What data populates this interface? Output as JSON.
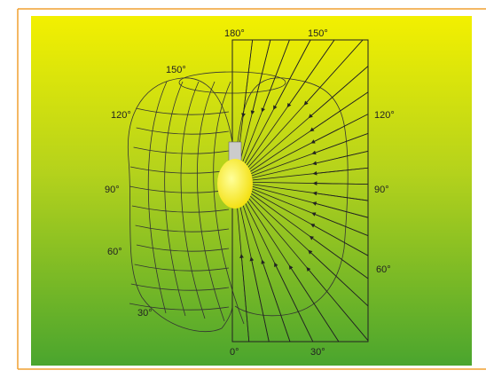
{
  "angle_labels": [
    "180°",
    "150°",
    "150°",
    "120°",
    "120°",
    "90°",
    "90°",
    "60°",
    "60°",
    "30°",
    "0°",
    "30°"
  ]
}
